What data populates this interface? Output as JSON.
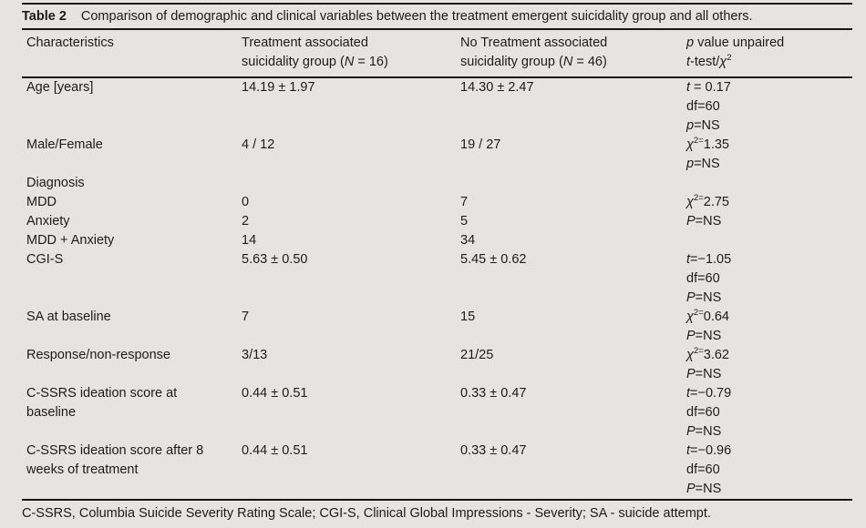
{
  "colors": {
    "background": "#e5e4e2",
    "text": "#1c1c1c",
    "rule": "#161616"
  },
  "title": {
    "label": "Table 2",
    "text": "Comparison of demographic and clinical variables between the treatment emergent suicidality group and all others."
  },
  "header": {
    "characteristics": "Characteristics",
    "group1_line1": "Treatment associated",
    "group1_line2": [
      [
        "",
        "suicidality group ("
      ],
      [
        "i",
        "N"
      ],
      [
        "",
        " = 16)"
      ]
    ],
    "group2_line1": "No Treatment associated",
    "group2_line2": [
      [
        "",
        "suicidality group ("
      ],
      [
        "i",
        "N"
      ],
      [
        "",
        " = 46)"
      ]
    ],
    "pvalue_line1": [
      [
        "i",
        "p"
      ],
      [
        "",
        " value unpaired"
      ]
    ],
    "pvalue_line2": [
      [
        "i",
        "t"
      ],
      [
        "",
        "-test/"
      ],
      [
        "i",
        "χ"
      ],
      [
        "sup",
        "2"
      ]
    ]
  },
  "rows": [
    {
      "label_lines": [
        "Age [years]"
      ],
      "group1": "14.19 ± 1.97",
      "group2": "14.30 ± 2.47",
      "stats": [
        [
          [
            "i",
            "t"
          ],
          [
            "",
            " = 0.17"
          ]
        ],
        [
          [
            "",
            "df=60"
          ]
        ],
        [
          [
            "i",
            "p"
          ],
          [
            "",
            "=NS"
          ]
        ]
      ]
    },
    {
      "label_lines": [
        "Male/Female"
      ],
      "group1": "4 / 12",
      "group2": "19 / 27",
      "stats": [
        [
          [
            "i",
            "χ"
          ],
          [
            "sup",
            "2="
          ],
          [
            "",
            "1.35"
          ]
        ],
        [
          [
            "i",
            "p"
          ],
          [
            "",
            "=NS"
          ]
        ]
      ]
    },
    {
      "label_lines": [
        "Diagnosis"
      ],
      "group1": "",
      "group2": "",
      "stats": []
    },
    {
      "label_lines": [
        "MDD"
      ],
      "group1": "0",
      "group2": "7",
      "stats": [
        [
          [
            "i",
            "χ"
          ],
          [
            "sup",
            "2="
          ],
          [
            "",
            "2.75"
          ]
        ]
      ]
    },
    {
      "label_lines": [
        "Anxiety"
      ],
      "group1": "2",
      "group2": "5",
      "stats": [
        [
          [
            "i",
            "P"
          ],
          [
            "",
            "=NS"
          ]
        ]
      ]
    },
    {
      "label_lines": [
        "MDD + Anxiety"
      ],
      "group1": "14",
      "group2": "34",
      "stats": []
    },
    {
      "label_lines": [
        "CGI-S"
      ],
      "group1": "5.63 ± 0.50",
      "group2": "5.45 ± 0.62",
      "stats": [
        [
          [
            "i",
            "t"
          ],
          [
            "",
            "=−1.05"
          ]
        ],
        [
          [
            "",
            "df=60"
          ]
        ],
        [
          [
            "i",
            "P"
          ],
          [
            "",
            "=NS"
          ]
        ]
      ]
    },
    {
      "label_lines": [
        "SA at baseline"
      ],
      "group1": "7",
      "group2": "15",
      "stats": [
        [
          [
            "i",
            "χ"
          ],
          [
            "sup",
            "2="
          ],
          [
            "",
            "0.64"
          ]
        ],
        [
          [
            "i",
            "P"
          ],
          [
            "",
            "=NS"
          ]
        ]
      ]
    },
    {
      "label_lines": [
        "Response/non-response"
      ],
      "group1": "3/13",
      "group2": "21/25",
      "stats": [
        [
          [
            "i",
            "χ"
          ],
          [
            "sup",
            "2="
          ],
          [
            "",
            "3.62"
          ]
        ],
        [
          [
            "i",
            "P"
          ],
          [
            "",
            "=NS"
          ]
        ]
      ]
    },
    {
      "label_lines": [
        "C-SSRS ideation score at",
        "baseline"
      ],
      "group1": "0.44 ± 0.51",
      "group2": "0.33 ± 0.47",
      "stats": [
        [
          [
            "i",
            "t"
          ],
          [
            "",
            "=−0.79"
          ]
        ],
        [
          [
            "",
            "df=60"
          ]
        ],
        [
          [
            "i",
            "P"
          ],
          [
            "",
            "=NS"
          ]
        ]
      ]
    },
    {
      "label_lines": [
        "C-SSRS ideation score after 8",
        "weeks of treatment"
      ],
      "group1": "0.44 ± 0.51",
      "group2": "0.33 ± 0.47",
      "stats": [
        [
          [
            "i",
            "t"
          ],
          [
            "",
            "=−0.96"
          ]
        ],
        [
          [
            "",
            "df=60"
          ]
        ],
        [
          [
            "i",
            "P"
          ],
          [
            "",
            "=NS"
          ]
        ]
      ]
    }
  ],
  "footnote": "C-SSRS, Columbia Suicide Severity Rating Scale; CGI-S, Clinical Global Impressions - Severity; SA - suicide attempt."
}
